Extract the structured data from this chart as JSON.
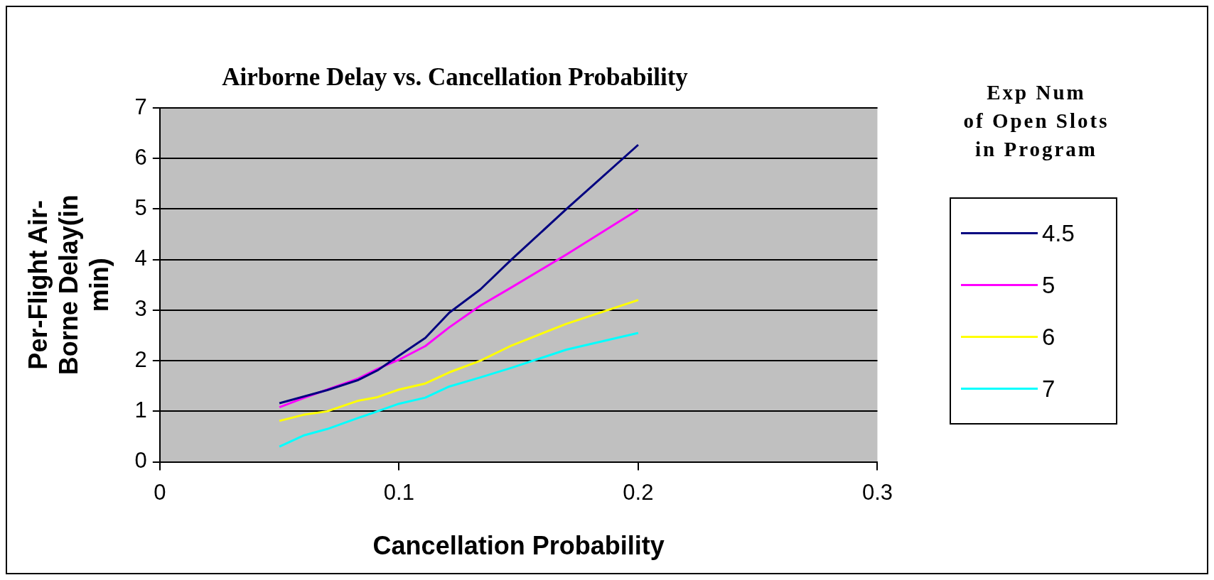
{
  "chart_data": {
    "type": "line",
    "title": "Airborne Delay vs. Cancellation Probability",
    "xlabel": "Cancellation Probability",
    "ylabel": "Per-Flight Air-Borne Delay(in min)",
    "legend_title": "Exp Num\nof Open Slots\nin Program",
    "x": [
      0.05,
      0.06,
      0.07,
      0.083,
      0.091,
      0.1,
      0.111,
      0.121,
      0.134,
      0.147,
      0.17,
      0.2
    ],
    "series": [
      {
        "name": "4.5",
        "color": "#000080",
        "values": [
          1.16,
          1.29,
          1.42,
          1.62,
          1.81,
          2.1,
          2.45,
          2.95,
          3.41,
          4.0,
          5.0,
          6.27
        ]
      },
      {
        "name": "5",
        "color": "#ff00ff",
        "values": [
          1.08,
          1.26,
          1.43,
          1.65,
          1.84,
          2.02,
          2.29,
          2.66,
          3.09,
          3.45,
          4.1,
          4.99
        ]
      },
      {
        "name": "6",
        "color": "#ffff00",
        "values": [
          0.81,
          0.93,
          1.0,
          1.21,
          1.28,
          1.43,
          1.55,
          1.77,
          2.0,
          2.3,
          2.73,
          3.2
        ]
      },
      {
        "name": "7",
        "color": "#00ffff",
        "values": [
          0.3,
          0.52,
          0.65,
          0.87,
          1.0,
          1.15,
          1.27,
          1.49,
          1.67,
          1.86,
          2.22,
          2.55
        ]
      }
    ],
    "xlim": [
      0,
      0.3
    ],
    "xticks": [
      0,
      0.1,
      0.2,
      0.3
    ],
    "ylim": [
      0,
      7
    ],
    "yticks": [
      0,
      1,
      2,
      3,
      4,
      5,
      6,
      7
    ],
    "grid": "y",
    "legend": "right",
    "marker": "none",
    "line_style": "solid"
  }
}
